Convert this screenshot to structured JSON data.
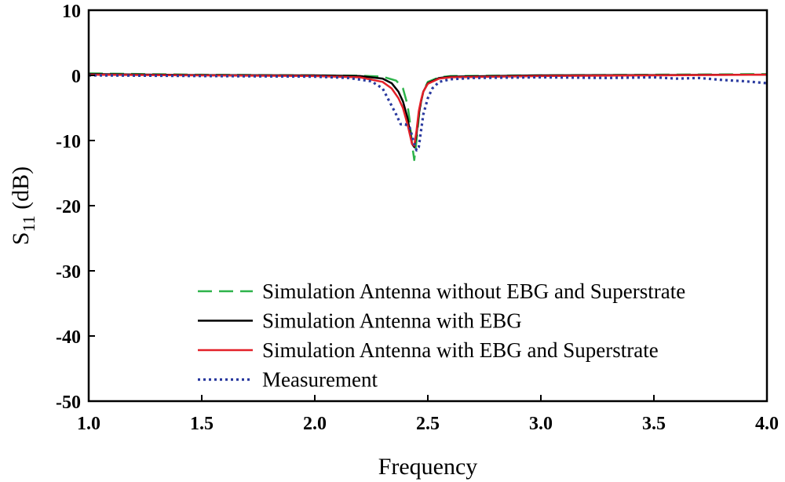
{
  "chart_data": {
    "type": "line",
    "title": "",
    "xlabel": "Frequency",
    "ylabel": "S",
    "ylabel_subscript": "11",
    "ylabel_suffix": " (dB)",
    "xlim": [
      1.0,
      4.0
    ],
    "ylim": [
      -50,
      10
    ],
    "xticks": [
      1.0,
      1.5,
      2.0,
      2.5,
      3.0,
      3.5,
      4.0
    ],
    "xtick_labels": [
      "1.0",
      "1.5",
      "2.0",
      "2.5",
      "3.0",
      "3.5",
      "4.0"
    ],
    "yticks": [
      10,
      0,
      -10,
      -20,
      -30,
      -40,
      -50
    ],
    "ytick_labels": [
      "10",
      "0",
      "-10",
      "-20",
      "-30",
      "-40",
      "-50"
    ],
    "grid": false,
    "legend_position": "bottom-right",
    "series": [
      {
        "name": "Simulation Antenna without EBG and Superstrate",
        "color": "#2db34a",
        "style": "dashed",
        "x": [
          1.0,
          1.5,
          2.0,
          2.2,
          2.3,
          2.36,
          2.39,
          2.41,
          2.42,
          2.43,
          2.44,
          2.45,
          2.46,
          2.47,
          2.48,
          2.5,
          2.55,
          2.6,
          3.0,
          3.5,
          4.0
        ],
        "y": [
          0.3,
          0.1,
          0.0,
          -0.05,
          -0.2,
          -0.8,
          -2.0,
          -4.5,
          -7.0,
          -10.5,
          -13.0,
          -10.0,
          -6.5,
          -4.0,
          -2.5,
          -1.0,
          -0.3,
          -0.1,
          0.0,
          0.1,
          0.2
        ]
      },
      {
        "name": "Simulation Antenna with EBG",
        "color": "#000000",
        "style": "solid",
        "x": [
          1.0,
          1.5,
          2.0,
          2.2,
          2.3,
          2.34,
          2.37,
          2.39,
          2.41,
          2.42,
          2.43,
          2.44,
          2.45,
          2.46,
          2.47,
          2.48,
          2.5,
          2.55,
          2.6,
          3.0,
          3.5,
          4.0
        ],
        "y": [
          0.2,
          0.05,
          0.0,
          -0.1,
          -0.5,
          -1.2,
          -2.5,
          -4.0,
          -6.5,
          -8.5,
          -10.5,
          -11.0,
          -9.0,
          -6.0,
          -4.0,
          -2.5,
          -1.2,
          -0.4,
          -0.2,
          0.0,
          0.05,
          0.1
        ]
      },
      {
        "name": "Simulation Antenna with EBG and Superstrate",
        "color": "#e32028",
        "style": "solid",
        "x": [
          1.0,
          1.5,
          2.0,
          2.2,
          2.3,
          2.34,
          2.37,
          2.39,
          2.41,
          2.42,
          2.43,
          2.44,
          2.45,
          2.46,
          2.47,
          2.48,
          2.5,
          2.55,
          2.6,
          3.0,
          3.5,
          4.0
        ],
        "y": [
          0.1,
          0.0,
          -0.1,
          -0.3,
          -1.0,
          -2.0,
          -3.5,
          -5.0,
          -7.5,
          -9.0,
          -10.5,
          -10.8,
          -8.5,
          -5.5,
          -3.8,
          -2.5,
          -1.3,
          -0.5,
          -0.3,
          -0.1,
          0.0,
          0.1
        ]
      },
      {
        "name": "Measurement",
        "color": "#2a3a9f",
        "style": "dotted",
        "x": [
          1.0,
          1.5,
          2.0,
          2.15,
          2.25,
          2.3,
          2.33,
          2.36,
          2.38,
          2.4,
          2.42,
          2.44,
          2.45,
          2.46,
          2.47,
          2.48,
          2.5,
          2.52,
          2.55,
          2.6,
          2.7,
          3.0,
          3.3,
          3.5,
          3.6,
          3.7,
          3.8,
          3.9,
          4.0
        ],
        "y": [
          0.0,
          -0.1,
          -0.2,
          -0.4,
          -0.9,
          -2.0,
          -4.0,
          -6.0,
          -7.5,
          -7.5,
          -8.0,
          -10.5,
          -11.5,
          -11.0,
          -8.5,
          -6.0,
          -3.5,
          -2.0,
          -1.0,
          -0.6,
          -0.4,
          -0.3,
          -0.4,
          -0.3,
          -0.5,
          -0.4,
          -0.7,
          -0.9,
          -1.2
        ]
      }
    ]
  }
}
